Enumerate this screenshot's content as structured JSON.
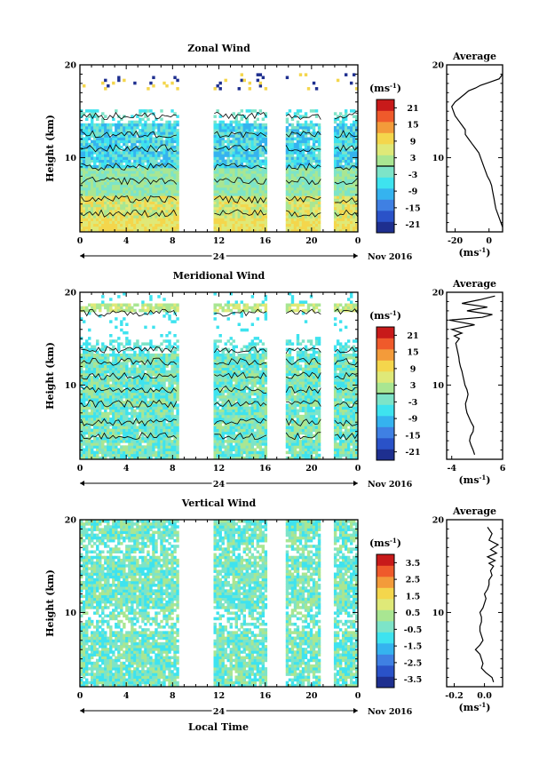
{
  "figure": {
    "bottom_xlabel": "Local Time",
    "date_label": "Nov 2016",
    "avg_xunit": "(ms",
    "avg_xunit_sup": "-1",
    "avg_xunit_close": ")",
    "cbar_unit": "(ms",
    "cbar_unit_sup": "-1",
    "cbar_unit_close": ")"
  },
  "chart_data": [
    {
      "type": "heatmap",
      "title": "Zonal Wind",
      "ylabel": "Height (km)",
      "xlim": [
        0,
        24
      ],
      "ylim": [
        2,
        20
      ],
      "x_ticks": [
        "0",
        "4",
        "8",
        "12",
        "16",
        "20",
        "0"
      ],
      "y_ticks": [
        "20",
        "10"
      ],
      "day_label": "24",
      "data_gaps_hours": [
        [
          8.5,
          11.6
        ],
        [
          16.1,
          17.8
        ],
        [
          20.8,
          22.0
        ]
      ],
      "colorbar": {
        "ticks": [
          "21",
          "15",
          "9",
          "3",
          "-3",
          "-9",
          "-15",
          "-21"
        ],
        "range": [
          -24,
          24
        ]
      },
      "average_profile": {
        "title": "Average",
        "xlim": [
          -25,
          8
        ],
        "x_ticks": [
          "-20",
          "0"
        ],
        "y_ticks": [
          "20",
          "10"
        ],
        "x": [
          8,
          7,
          6,
          5,
          4,
          3.5,
          3,
          2.5,
          2,
          1.5,
          0.5,
          -1,
          -2,
          -3,
          -4,
          -5,
          -6,
          -8,
          -10,
          -12,
          -14,
          -14,
          -16,
          -18,
          -20,
          -21,
          -22,
          -20,
          -18,
          -16,
          -14,
          -12,
          -8,
          -5,
          0,
          6,
          8
        ],
        "y": [
          2.5,
          3,
          3.5,
          4,
          4.5,
          5,
          5.5,
          6,
          6.5,
          7,
          7.5,
          8,
          8.5,
          9,
          9.5,
          10,
          10.5,
          11,
          11.5,
          12,
          12.5,
          13,
          13.5,
          14,
          14.5,
          15,
          15.5,
          16,
          16.3,
          16.6,
          16.9,
          17.2,
          17.5,
          17.8,
          18.1,
          18.5,
          19
        ]
      }
    },
    {
      "type": "heatmap",
      "title": "Meridional Wind",
      "ylabel": "Height (km)",
      "xlim": [
        0,
        24
      ],
      "ylim": [
        2,
        20
      ],
      "x_ticks": [
        "0",
        "4",
        "8",
        "12",
        "16",
        "20",
        "0"
      ],
      "y_ticks": [
        "20",
        "10"
      ],
      "day_label": "24",
      "data_gaps_hours": [
        [
          8.5,
          11.6
        ],
        [
          16.1,
          17.8
        ],
        [
          20.8,
          22.0
        ]
      ],
      "colorbar": {
        "ticks": [
          "21",
          "15",
          "9",
          "3",
          "-3",
          "-9",
          "-15",
          "-21"
        ],
        "range": [
          -24,
          24
        ]
      },
      "average_profile": {
        "title": "Average",
        "xlim": [
          -5,
          6
        ],
        "x_ticks": [
          "-4",
          "6"
        ],
        "y_ticks": [
          "20",
          "10"
        ],
        "x": [
          0.5,
          0.2,
          -0.2,
          -0.5,
          -0.3,
          0.2,
          0.3,
          -0.2,
          -0.6,
          -1.0,
          -1.2,
          -1.3,
          -1.0,
          -0.8,
          -1.0,
          -1.4,
          -1.6,
          -1.8,
          -2.0,
          -2.3,
          -2.5,
          -2.6,
          -2.8,
          -3.0,
          -3.2,
          -2.5,
          -3.5,
          -2.0,
          -4.0,
          0.5,
          -4.5,
          2.0,
          4.0,
          -1.0,
          3.0,
          -2.0,
          1.5,
          4.5
        ],
        "y": [
          2.5,
          3,
          3.5,
          4,
          4.5,
          5,
          5.5,
          6,
          6.5,
          7,
          7.5,
          8,
          8.5,
          9,
          9.5,
          10,
          10.5,
          11,
          11.5,
          12,
          12.5,
          13,
          13.5,
          14,
          14.5,
          15,
          15.3,
          15.6,
          16,
          16.5,
          17,
          17.3,
          17.6,
          18,
          18.4,
          18.8,
          19.2,
          19.6
        ]
      }
    },
    {
      "type": "heatmap",
      "title": "Vertical Wind",
      "ylabel": "Height (km)",
      "xlim": [
        0,
        24
      ],
      "ylim": [
        2,
        20
      ],
      "x_ticks": [
        "0",
        "4",
        "8",
        "12",
        "16",
        "20",
        "0"
      ],
      "y_ticks": [
        "20",
        "10"
      ],
      "day_label": "24",
      "data_gaps_hours": [
        [
          8.5,
          11.6
        ],
        [
          16.1,
          17.8
        ],
        [
          20.8,
          22.0
        ]
      ],
      "colorbar": {
        "ticks": [
          "3.5",
          "2.5",
          "1.5",
          "0.5",
          "-0.5",
          "-1.5",
          "-2.5",
          "-3.5"
        ],
        "range": [
          -4,
          4
        ]
      },
      "average_profile": {
        "title": "Average",
        "xlim": [
          -0.25,
          0.12
        ],
        "x_ticks": [
          "-0.2",
          "0.0"
        ],
        "y_ticks": [
          "20",
          "10"
        ],
        "x": [
          0.06,
          0.05,
          0.01,
          -0.02,
          -0.01,
          -0.02,
          -0.03,
          -0.06,
          -0.03,
          -0.01,
          -0.02,
          -0.03,
          -0.03,
          -0.02,
          -0.02,
          -0.03,
          -0.01,
          0.0,
          0.01,
          0.0,
          0.02,
          0.03,
          0.03,
          0.05,
          0.04,
          0.06,
          0.03,
          0.07,
          0.02,
          0.08,
          0.04,
          0.09,
          0.03,
          0.05,
          0.02
        ],
        "y": [
          2.5,
          3,
          3.5,
          4,
          4.5,
          5,
          5.5,
          6,
          6.5,
          7,
          7.5,
          8,
          8.5,
          9,
          9.5,
          10,
          10.5,
          11,
          11.5,
          12,
          12.5,
          13,
          13.5,
          14,
          14.5,
          15,
          15.3,
          15.6,
          16,
          16.4,
          16.8,
          17.3,
          17.8,
          18.5,
          19.2
        ]
      }
    }
  ],
  "colors": {
    "colormap": [
      "#1e2f8f",
      "#2a52c8",
      "#3f80e3",
      "#35b3ef",
      "#3ee3ef",
      "#7de4c8",
      "#a9e692",
      "#dfe978",
      "#f4d64c",
      "#f39b3a",
      "#ef5a2b",
      "#c81a1a"
    ]
  }
}
